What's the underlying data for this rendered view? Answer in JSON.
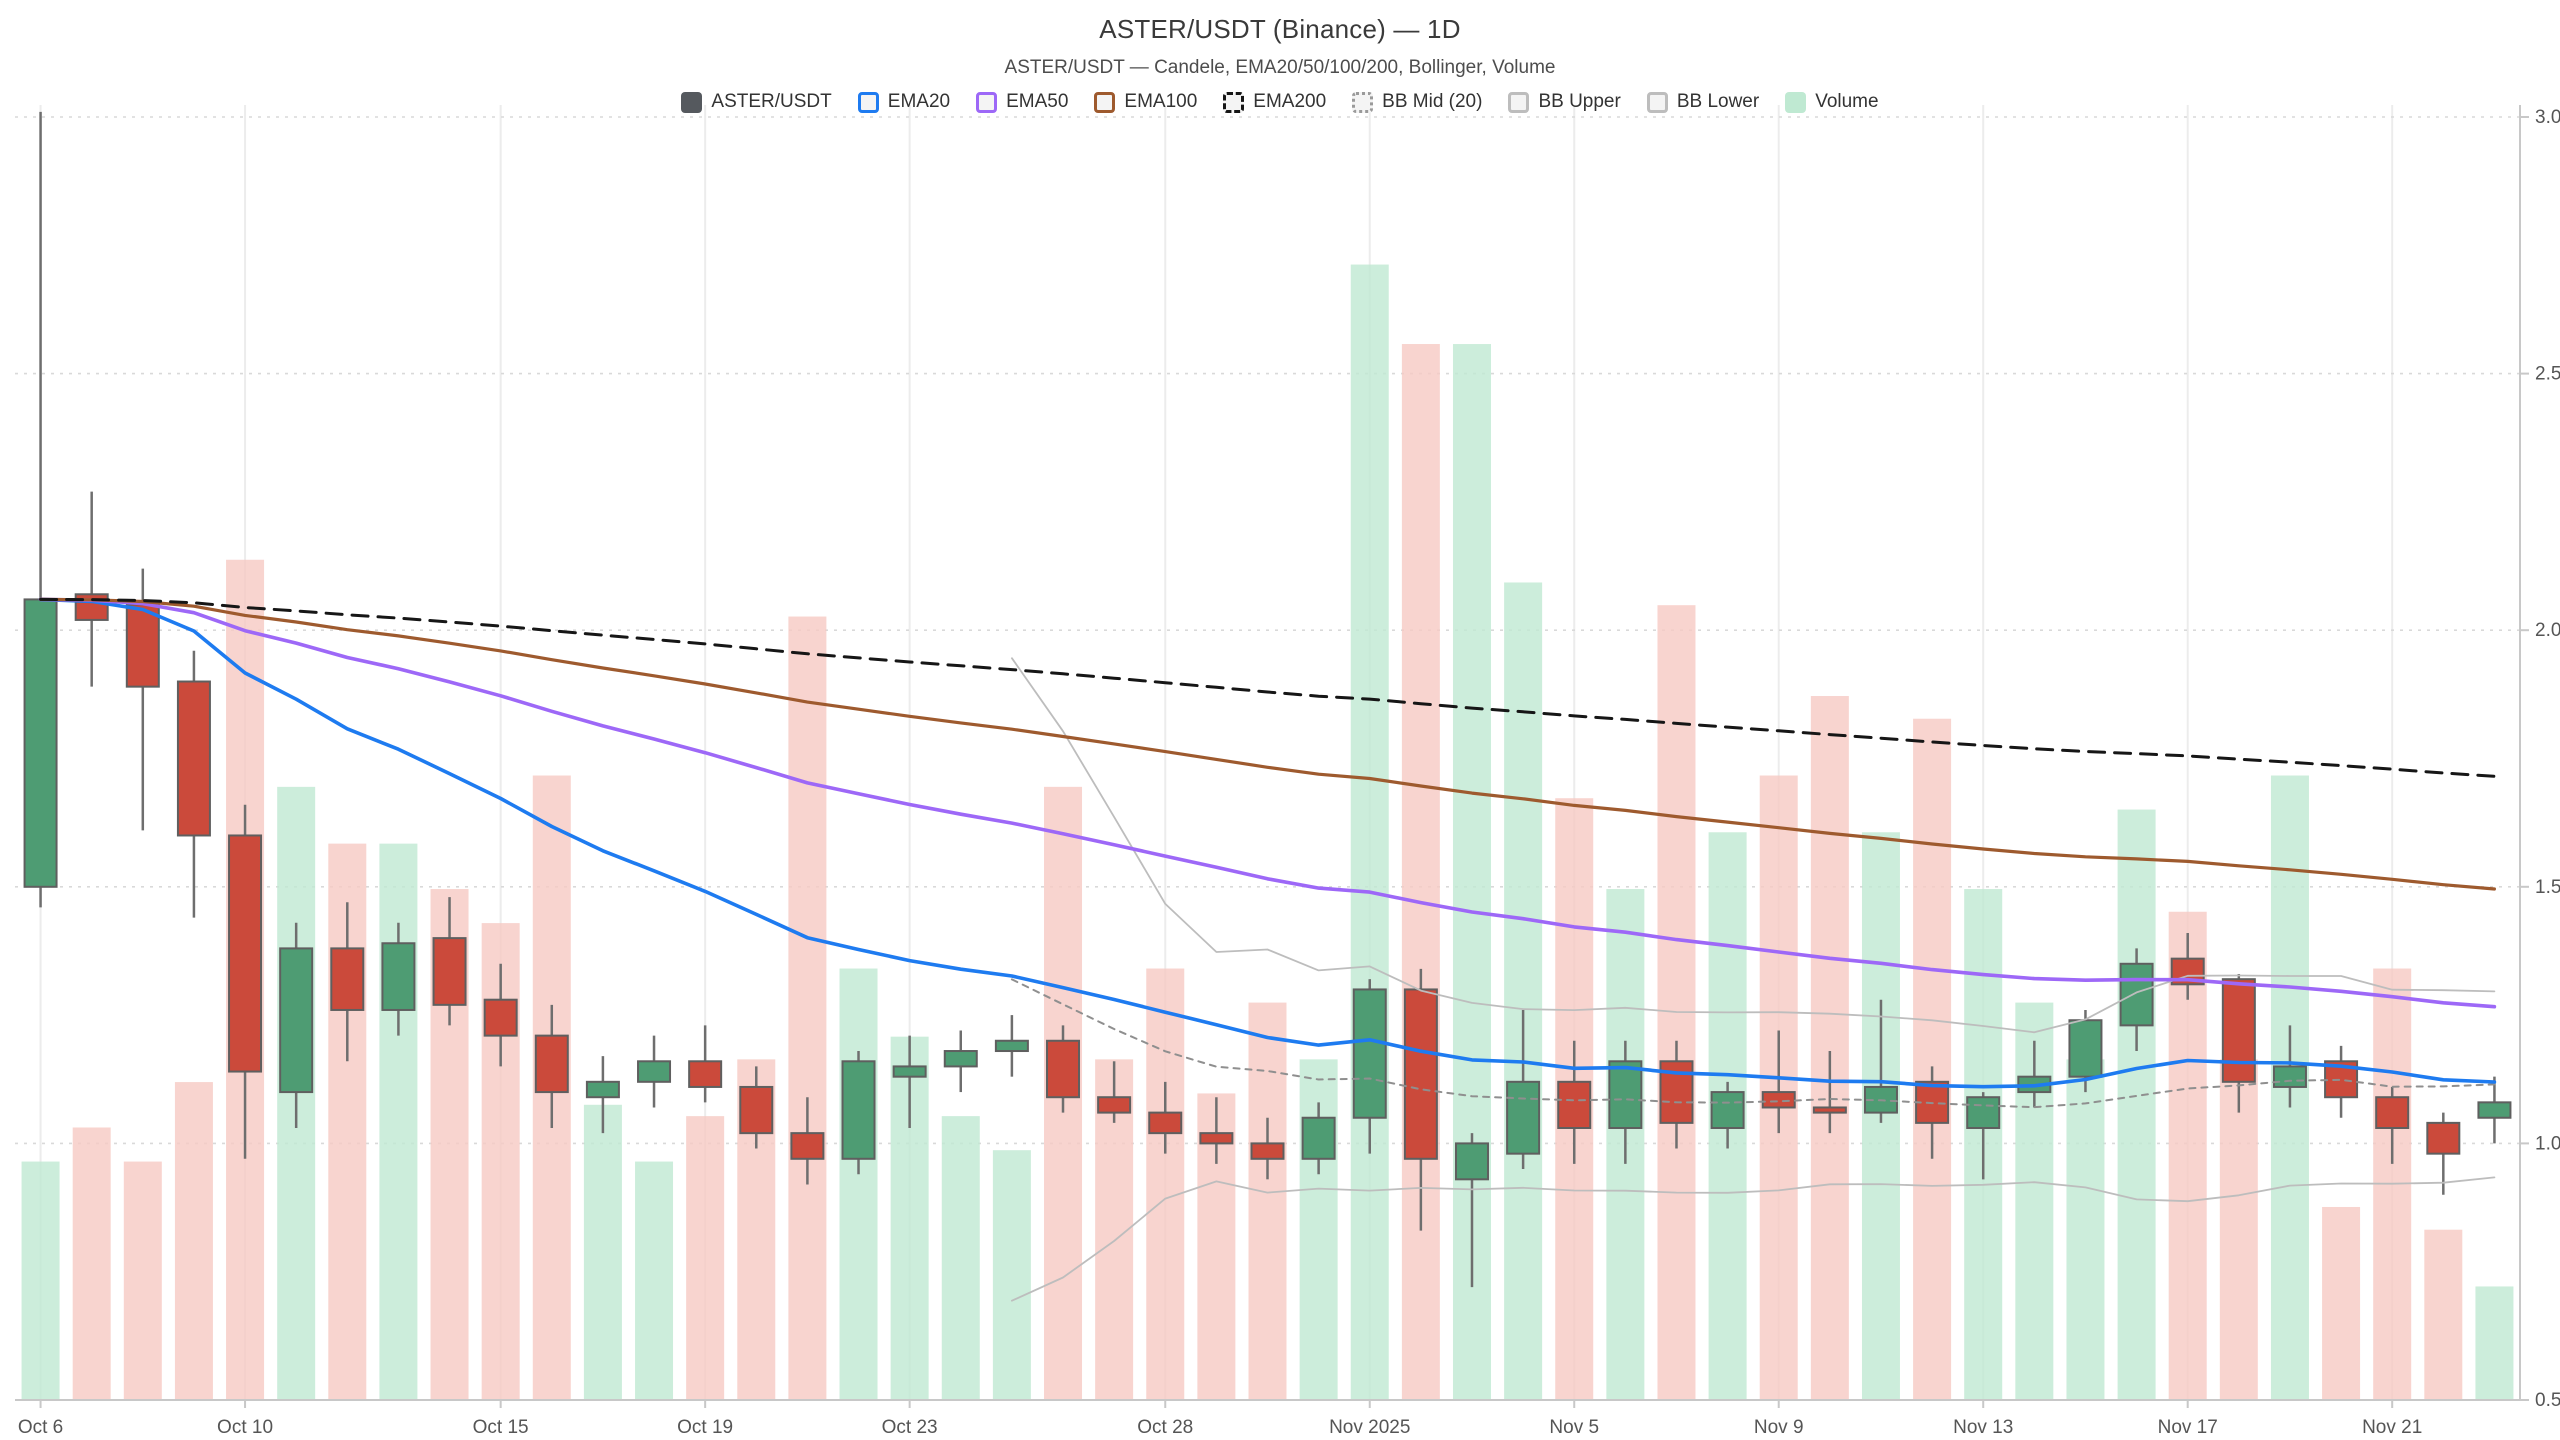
{
  "header": {
    "title": "ASTER/USDT (Binance) — 1D",
    "subtitle": "ASTER/USDT — Candele, EMA20/50/100/200, Bollinger, Volume"
  },
  "legend": {
    "items": [
      {
        "id": "aster-usdt",
        "label": "ASTER/USDT",
        "swatch": "solid",
        "color": "#55595e"
      },
      {
        "id": "ema20",
        "label": "EMA20",
        "swatch": "outline",
        "color": "#1e7bf0"
      },
      {
        "id": "ema50",
        "label": "EMA50",
        "swatch": "outline",
        "color": "#9d68f7"
      },
      {
        "id": "ema100",
        "label": "EMA100",
        "swatch": "outline",
        "color": "#9e5a2e"
      },
      {
        "id": "ema200",
        "label": "EMA200",
        "swatch": "outline-dashed",
        "color": "#161616"
      },
      {
        "id": "bb-mid",
        "label": "BB Mid (20)",
        "swatch": "outline-dotted",
        "color": "#9a9a9a"
      },
      {
        "id": "bb-upper",
        "label": "BB Upper",
        "swatch": "outline",
        "color": "#bdbdbd"
      },
      {
        "id": "bb-lower",
        "label": "BB Lower",
        "swatch": "outline",
        "color": "#bdbdbd"
      },
      {
        "id": "volume",
        "label": "Volume",
        "swatch": "solid",
        "color": "#bfe9d2"
      }
    ]
  },
  "chart_data": {
    "type": "candlestick",
    "title": "ASTER/USDT (Binance) — 1D",
    "ylim": [
      0.5,
      3.0
    ],
    "y_ticks": [
      0.5,
      1.0,
      1.5,
      2.0,
      2.5,
      3.0
    ],
    "y_grid_ticks": [
      1.0,
      1.5,
      2.0,
      2.5,
      3.0
    ],
    "x_tick_labels": [
      "Oct 6",
      "Oct 10",
      "Oct 15",
      "Oct 19",
      "Oct 23",
      "Oct 28",
      "Nov 2025",
      "Nov 5",
      "Nov 9",
      "Nov 13",
      "Nov 17",
      "Nov 21"
    ],
    "x_tick_indices": [
      0,
      4,
      9,
      13,
      17,
      22,
      26,
      30,
      34,
      38,
      42,
      46
    ],
    "dates": [
      "Oct 6",
      "Oct 7",
      "Oct 8",
      "Oct 9",
      "Oct 10",
      "Oct 11",
      "Oct 12",
      "Oct 13",
      "Oct 14",
      "Oct 15",
      "Oct 16",
      "Oct 17",
      "Oct 18",
      "Oct 19",
      "Oct 20",
      "Oct 21",
      "Oct 22",
      "Oct 23",
      "Oct 24",
      "Oct 25",
      "Oct 26",
      "Oct 27",
      "Oct 28",
      "Oct 29",
      "Oct 30",
      "Oct 31",
      "Nov 1",
      "Nov 2",
      "Nov 3",
      "Nov 4",
      "Nov 5",
      "Nov 6",
      "Nov 7",
      "Nov 8",
      "Nov 9",
      "Nov 10",
      "Nov 11",
      "Nov 12",
      "Nov 13",
      "Nov 14",
      "Nov 15",
      "Nov 16",
      "Nov 17",
      "Nov 18",
      "Nov 19",
      "Nov 20",
      "Nov 21",
      "Nov 22",
      "Nov 23"
    ],
    "ohlc": [
      [
        1.5,
        3.01,
        1.46,
        2.06
      ],
      [
        2.07,
        2.27,
        1.89,
        2.02
      ],
      [
        2.05,
        2.12,
        1.61,
        1.89
      ],
      [
        1.9,
        1.96,
        1.44,
        1.6
      ],
      [
        1.6,
        1.66,
        0.97,
        1.14
      ],
      [
        1.1,
        1.43,
        1.03,
        1.38
      ],
      [
        1.38,
        1.47,
        1.16,
        1.26
      ],
      [
        1.26,
        1.43,
        1.21,
        1.39
      ],
      [
        1.4,
        1.48,
        1.23,
        1.27
      ],
      [
        1.28,
        1.35,
        1.15,
        1.21
      ],
      [
        1.21,
        1.27,
        1.03,
        1.1
      ],
      [
        1.09,
        1.17,
        1.02,
        1.12
      ],
      [
        1.12,
        1.21,
        1.07,
        1.16
      ],
      [
        1.16,
        1.23,
        1.08,
        1.11
      ],
      [
        1.11,
        1.15,
        0.99,
        1.02
      ],
      [
        1.02,
        1.09,
        0.92,
        0.97
      ],
      [
        0.97,
        1.18,
        0.94,
        1.16
      ],
      [
        1.13,
        1.21,
        1.03,
        1.15
      ],
      [
        1.15,
        1.22,
        1.1,
        1.18
      ],
      [
        1.18,
        1.25,
        1.13,
        1.2
      ],
      [
        1.2,
        1.23,
        1.06,
        1.09
      ],
      [
        1.09,
        1.16,
        1.04,
        1.06
      ],
      [
        1.06,
        1.12,
        0.98,
        1.02
      ],
      [
        1.02,
        1.09,
        0.96,
        1.0
      ],
      [
        1.0,
        1.05,
        0.93,
        0.97
      ],
      [
        0.97,
        1.08,
        0.94,
        1.05
      ],
      [
        1.05,
        1.32,
        0.98,
        1.3
      ],
      [
        1.3,
        1.34,
        0.83,
        0.97
      ],
      [
        0.93,
        1.02,
        0.72,
        1.0
      ],
      [
        0.98,
        1.26,
        0.95,
        1.12
      ],
      [
        1.12,
        1.2,
        0.96,
        1.03
      ],
      [
        1.03,
        1.2,
        0.96,
        1.16
      ],
      [
        1.16,
        1.2,
        0.99,
        1.04
      ],
      [
        1.03,
        1.12,
        0.99,
        1.1
      ],
      [
        1.1,
        1.22,
        1.02,
        1.07
      ],
      [
        1.07,
        1.18,
        1.02,
        1.06
      ],
      [
        1.06,
        1.28,
        1.04,
        1.11
      ],
      [
        1.12,
        1.15,
        0.97,
        1.04
      ],
      [
        1.03,
        1.1,
        0.93,
        1.09
      ],
      [
        1.1,
        1.2,
        1.07,
        1.13
      ],
      [
        1.13,
        1.26,
        1.1,
        1.24
      ],
      [
        1.23,
        1.38,
        1.18,
        1.35
      ],
      [
        1.36,
        1.41,
        1.28,
        1.31
      ],
      [
        1.32,
        1.33,
        1.06,
        1.12
      ],
      [
        1.11,
        1.23,
        1.07,
        1.15
      ],
      [
        1.16,
        1.19,
        1.05,
        1.09
      ],
      [
        1.09,
        1.11,
        0.96,
        1.03
      ],
      [
        1.04,
        1.06,
        0.9,
        0.98
      ],
      [
        1.05,
        1.13,
        1.0,
        1.08
      ]
    ],
    "volume_rel": [
      0.21,
      0.24,
      0.21,
      0.28,
      0.74,
      0.54,
      0.49,
      0.49,
      0.45,
      0.42,
      0.55,
      0.26,
      0.21,
      0.25,
      0.3,
      0.69,
      0.38,
      0.32,
      0.25,
      0.22,
      0.54,
      0.3,
      0.38,
      0.27,
      0.35,
      0.3,
      1.0,
      0.93,
      0.93,
      0.72,
      0.53,
      0.45,
      0.7,
      0.5,
      0.55,
      0.62,
      0.5,
      0.6,
      0.45,
      0.35,
      0.3,
      0.52,
      0.43,
      0.3,
      0.55,
      0.17,
      0.38,
      0.15,
      0.1
    ],
    "indicators": {
      "ema_periods": [
        20,
        50,
        100,
        200
      ],
      "bollinger": {
        "period": 20,
        "mult": 2
      }
    },
    "legend_position": "top",
    "grid": true,
    "colors": {
      "candle_up": "#4e9c73",
      "candle_down": "#cb4a3b",
      "candle_border": "#5f5f5f",
      "wick": "#6e6e6e",
      "volume_up": "#bfe9d2",
      "volume_down": "#f6c9c3",
      "ema20": "#1e7bf0",
      "ema50": "#9d68f7",
      "ema100": "#9e5a2e",
      "ema200": "#161616",
      "bb_mid": "#8f8f8f",
      "bb_band": "#bdbdbd",
      "grid_h": "#d9d9d9",
      "grid_v": "#ececec",
      "axis_line": "#c8c8c8",
      "axis_text": "#555555"
    }
  }
}
